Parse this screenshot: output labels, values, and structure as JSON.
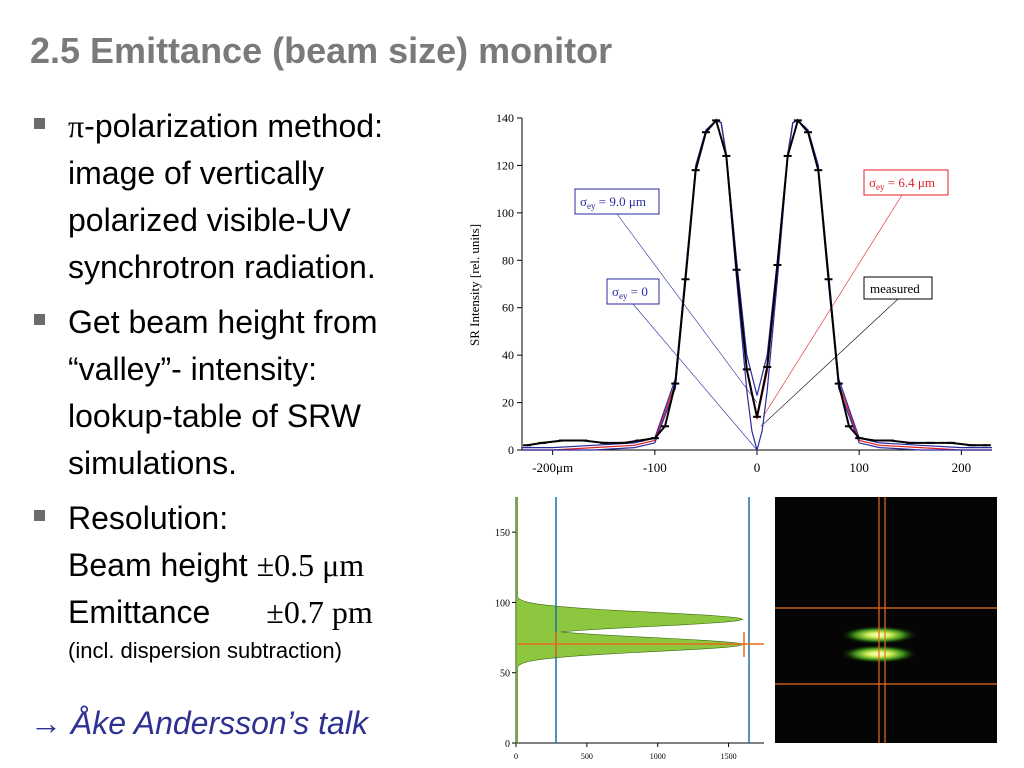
{
  "slide": {
    "title": "2.5 Emittance (beam size) monitor",
    "bullets": [
      {
        "symbol": "π",
        "first": "-polarization method:",
        "lines": [
          "image of vertically",
          "polarized visible-UV",
          "synchrotron radiation."
        ]
      },
      {
        "lines": [
          "Get beam height from",
          "“valley”- intensity:",
          "lookup-table of SRW",
          "simulations."
        ]
      },
      {
        "heading": "Resolution:",
        "beam_height_label": "Beam height",
        "beam_height_value": "±0.5 μm",
        "emittance_label": "Emittance",
        "emittance_value": "±0.7 pm",
        "note": "(incl. dispersion subtraction)"
      }
    ],
    "link_text": "→ Åke Andersson’s talk"
  },
  "colors": {
    "title": "#7a7a7a",
    "link": "#2e3192",
    "sim_sigma9": "#2a2aa0",
    "sim_sigma64": "#e0202a",
    "measured": "#000000",
    "profile_fill": "#8dc63f",
    "marker_orange": "#e86a1c",
    "vline_blue": "#1f6fa8"
  },
  "chart_data": [
    {
      "type": "line",
      "ylabel": "SR Intensity [rel. units]",
      "x_ticks": [
        "-200μm",
        "-100",
        "0",
        "100",
        "200"
      ],
      "y_ticks": [
        "0",
        "20",
        "40",
        "60",
        "80",
        "100",
        "120",
        "140"
      ],
      "xlim": [
        -230,
        230
      ],
      "ylim": [
        0,
        140
      ],
      "annotations": [
        {
          "base": "σ",
          "sub": "ey",
          "rest": " = 9.0 μm",
          "color": "#2a2aa0"
        },
        {
          "base": "σ",
          "sub": "ey",
          "rest": " = 0",
          "color": "#2a2aa0"
        },
        {
          "base": "σ",
          "sub": "ey",
          "rest": " = 6.4 μm",
          "color": "#e0202a"
        },
        {
          "text": "measured",
          "color": "#000000"
        }
      ],
      "series": [
        {
          "x": [
            -230,
            -200,
            -160,
            -120,
            -100,
            -80,
            -70,
            -60,
            -50,
            -40,
            -35,
            -30,
            -20,
            -10,
            0,
            10,
            20,
            30,
            35,
            40,
            50,
            60,
            70,
            80,
            100,
            120,
            160,
            200,
            230
          ],
          "y": [
            1,
            1,
            2,
            3,
            5,
            30,
            75,
            120,
            135,
            139,
            138,
            125,
            80,
            40,
            23,
            40,
            80,
            125,
            138,
            139,
            135,
            120,
            75,
            30,
            5,
            3,
            2,
            1,
            1
          ]
        },
        {
          "x": [
            -230,
            -200,
            -160,
            -120,
            -100,
            -80,
            -70,
            -60,
            -50,
            -40,
            -35,
            -30,
            -20,
            -10,
            0,
            10,
            20,
            30,
            35,
            40,
            50,
            60,
            70,
            80,
            100,
            120,
            160,
            200,
            230
          ],
          "y": [
            0,
            0,
            1,
            2,
            4,
            28,
            73,
            118,
            134,
            139,
            138,
            124,
            76,
            33,
            13,
            33,
            76,
            124,
            138,
            139,
            134,
            118,
            73,
            28,
            4,
            2,
            1,
            0,
            0
          ]
        },
        {
          "x": [
            -230,
            -200,
            -160,
            -120,
            -100,
            -80,
            -70,
            -60,
            -50,
            -40,
            -35,
            -30,
            -20,
            -10,
            -5,
            0,
            5,
            10,
            20,
            30,
            35,
            40,
            50,
            60,
            70,
            80,
            100,
            120,
            160,
            200,
            230
          ],
          "y": [
            0,
            0,
            0,
            1,
            3,
            26,
            72,
            118,
            134,
            139,
            138,
            123,
            72,
            25,
            8,
            0,
            8,
            25,
            72,
            123,
            138,
            139,
            134,
            118,
            72,
            26,
            3,
            1,
            0,
            0,
            0
          ]
        },
        {
          "x": [
            -225,
            -210,
            -190,
            -170,
            -150,
            -130,
            -115,
            -100,
            -90,
            -80,
            -70,
            -60,
            -50,
            -40,
            -30,
            -20,
            -10,
            0,
            10,
            20,
            30,
            40,
            50,
            60,
            70,
            80,
            90,
            100,
            115,
            130,
            150,
            170,
            190,
            210,
            225
          ],
          "y": [
            2,
            3,
            4,
            4,
            3,
            3,
            4,
            5,
            10,
            28,
            72,
            118,
            134,
            139,
            124,
            76,
            34,
            14,
            35,
            78,
            124,
            139,
            134,
            118,
            72,
            28,
            10,
            5,
            4,
            4,
            3,
            3,
            3,
            2,
            2
          ]
        }
      ]
    },
    {
      "type": "area",
      "x_ticks": [
        "0",
        "500",
        "1000",
        "1500"
      ],
      "y_ticks": [
        "0",
        "50",
        "100",
        "150"
      ],
      "xlim": [
        0,
        1750
      ],
      "ylim": [
        0,
        175
      ],
      "bands": [
        {
          "y_center": 88,
          "y_halfwidth": 5,
          "peak_x": 1600
        },
        {
          "y_center": 70,
          "y_halfwidth": 5,
          "peak_x": 1600
        }
      ],
      "marker_y": 78,
      "marker_x": 300
    }
  ]
}
